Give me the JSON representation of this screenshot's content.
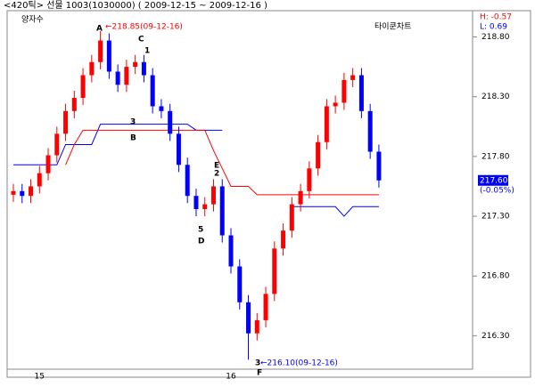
{
  "chart_data": {
    "type": "candlestick",
    "header": "<420틱> 선물 1003(1030000) ( 2009-12-15 ~ 2009-12-16 )",
    "indicator": "양자수",
    "chart_name": "타이쿤차트",
    "high_label": "H: -0.57",
    "low_label": "L: 0.69",
    "categories": [
      null,
      null,
      null,
      "15",
      null,
      null,
      null,
      null,
      null,
      null,
      null,
      null,
      null,
      null,
      null,
      null,
      null,
      null,
      null,
      null,
      null,
      null,
      null,
      null,
      null,
      "16",
      null,
      null,
      null,
      null,
      null,
      null,
      null,
      null,
      null,
      null,
      null,
      null,
      null,
      null,
      null,
      null,
      null
    ],
    "open": [
      217.48,
      217.51,
      217.47,
      217.55,
      217.66,
      217.81,
      217.99,
      218.18,
      218.29,
      218.48,
      218.59,
      218.77,
      218.51,
      218.4,
      218.55,
      218.59,
      218.48,
      218.22,
      218.18,
      217.99,
      217.73,
      217.47,
      217.36,
      217.4,
      217.55,
      217.14,
      216.88,
      216.58,
      216.32,
      216.43,
      216.65,
      217.03,
      217.18,
      217.4,
      217.51,
      217.7,
      217.92,
      218.22,
      218.25,
      218.44,
      218.48,
      218.18,
      217.84
    ],
    "high": [
      217.57,
      217.57,
      217.61,
      217.72,
      217.87,
      218.05,
      218.24,
      218.35,
      218.54,
      218.65,
      218.85,
      218.83,
      218.57,
      218.61,
      218.65,
      218.65,
      218.54,
      218.28,
      218.24,
      218.05,
      217.79,
      217.53,
      217.46,
      217.61,
      217.61,
      217.2,
      216.94,
      216.64,
      216.49,
      216.71,
      217.09,
      217.24,
      217.46,
      217.57,
      217.76,
      217.98,
      218.28,
      218.31,
      218.5,
      218.54,
      218.54,
      218.24,
      217.9
    ],
    "low": [
      217.42,
      217.41,
      217.41,
      217.49,
      217.6,
      217.75,
      217.93,
      218.12,
      218.23,
      218.42,
      218.53,
      218.45,
      218.34,
      218.34,
      218.49,
      218.42,
      218.16,
      218.12,
      217.93,
      217.67,
      217.41,
      217.3,
      217.3,
      217.34,
      217.08,
      216.82,
      216.52,
      216.1,
      216.26,
      216.37,
      216.59,
      216.97,
      217.12,
      217.34,
      217.45,
      217.64,
      217.86,
      218.16,
      218.19,
      218.38,
      218.12,
      217.78,
      217.54
    ],
    "close": [
      217.51,
      217.47,
      217.55,
      217.66,
      217.81,
      217.99,
      218.18,
      218.29,
      218.48,
      218.59,
      218.77,
      218.51,
      218.4,
      218.55,
      218.59,
      218.48,
      218.22,
      218.18,
      217.99,
      217.73,
      217.47,
      217.36,
      217.4,
      217.55,
      217.14,
      216.88,
      216.58,
      216.32,
      216.43,
      216.65,
      217.03,
      217.18,
      217.4,
      217.51,
      217.7,
      217.92,
      218.22,
      218.25,
      218.44,
      218.48,
      218.18,
      217.84,
      217.6
    ],
    "up_color": "#ff0000",
    "down_color": "#0000ff",
    "lines": [
      {
        "color": "#0000ff",
        "values": [
          217.73,
          217.73,
          217.73,
          217.73,
          217.73,
          217.73,
          217.9,
          217.9,
          217.9,
          217.9,
          218.07,
          218.07,
          218.07,
          218.07,
          218.07,
          218.07,
          218.07,
          218.07,
          218.07,
          218.07,
          218.07,
          218.02,
          218.02,
          218.02,
          218.02,
          null,
          null,
          null,
          null,
          null,
          null,
          null,
          217.38,
          217.38,
          217.38,
          217.38,
          217.38,
          217.38,
          217.3,
          217.38,
          217.38,
          217.38,
          217.38
        ]
      },
      {
        "color": "#ff0000",
        "values": [
          null,
          null,
          null,
          null,
          null,
          null,
          217.73,
          217.9,
          218.02,
          218.02,
          218.02,
          218.02,
          218.02,
          218.02,
          218.02,
          218.02,
          218.02,
          218.02,
          218.02,
          218.02,
          218.02,
          218.02,
          218.02,
          217.85,
          217.7,
          217.55,
          217.55,
          217.55,
          217.48,
          217.48,
          217.48,
          217.48,
          217.48,
          217.48,
          217.48,
          217.48,
          217.48,
          217.48,
          217.48,
          217.48,
          217.48,
          217.48,
          217.48
        ]
      }
    ],
    "ylim": [
      216.02,
      219.02
    ],
    "yticks": [
      {
        "value": 216.3,
        "label": "216.30"
      },
      {
        "value": 216.8,
        "label": "216.80"
      },
      {
        "value": 217.3,
        "label": "217.30"
      },
      {
        "value": 217.8,
        "label": "217.80"
      },
      {
        "value": 218.3,
        "label": "218.30"
      },
      {
        "value": 218.8,
        "label": "218.80"
      }
    ],
    "last_price": {
      "value": 217.6,
      "label": "217.60"
    },
    "change_label": "(-0.05%)",
    "annotations": [
      "A",
      "←218.85(09-12-16)",
      "C",
      "1",
      "3",
      "B",
      "E",
      "2",
      "5",
      "D",
      "3",
      "F",
      "←216.10(09-12-16)"
    ]
  }
}
